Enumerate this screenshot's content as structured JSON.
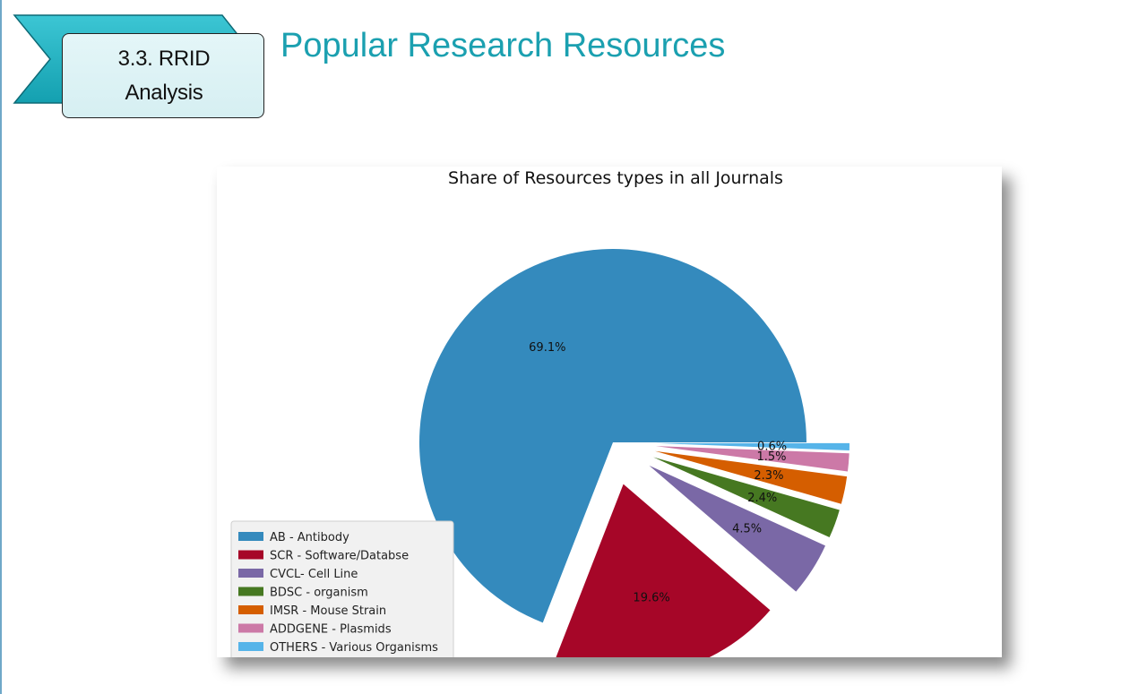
{
  "slide": {
    "section_line1": "3.3. RRID",
    "section_line2": "Analysis",
    "title": "Popular Research Resources"
  },
  "colors": {
    "title": "#1ba0b0",
    "badge_arrow": "#22b4c4",
    "badge_fill": "#e4f6f8"
  },
  "chart_data": {
    "type": "pie",
    "title": "Share of Resources types in all Journals",
    "legend_position": "lower-left",
    "start_angle_deg": 0,
    "direction": "counterclockwise",
    "slices": [
      {
        "label": "AB - Antibody",
        "value": 69.1,
        "pct_label": "69.1%",
        "color": "#348abd",
        "exploded": false
      },
      {
        "label": "SCR - Software/Databse",
        "value": 19.6,
        "pct_label": "19.6%",
        "color": "#a60628",
        "exploded": true
      },
      {
        "label": "CVCL- Cell Line",
        "value": 4.5,
        "pct_label": "4.5%",
        "color": "#7a68a6",
        "exploded": true
      },
      {
        "label": "BDSC - organism",
        "value": 2.4,
        "pct_label": "2.4%",
        "color": "#467821",
        "exploded": true
      },
      {
        "label": "IMSR - Mouse Strain",
        "value": 2.3,
        "pct_label": "2.3%",
        "color": "#d55e00",
        "exploded": true
      },
      {
        "label": "ADDGENE - Plasmids",
        "value": 1.5,
        "pct_label": "1.5%",
        "color": "#cc79a7",
        "exploded": true
      },
      {
        "label": "OTHERS - Various Organisms",
        "value": 0.6,
        "pct_label": "0.6%",
        "color": "#56b4e9",
        "exploded": true
      }
    ]
  }
}
